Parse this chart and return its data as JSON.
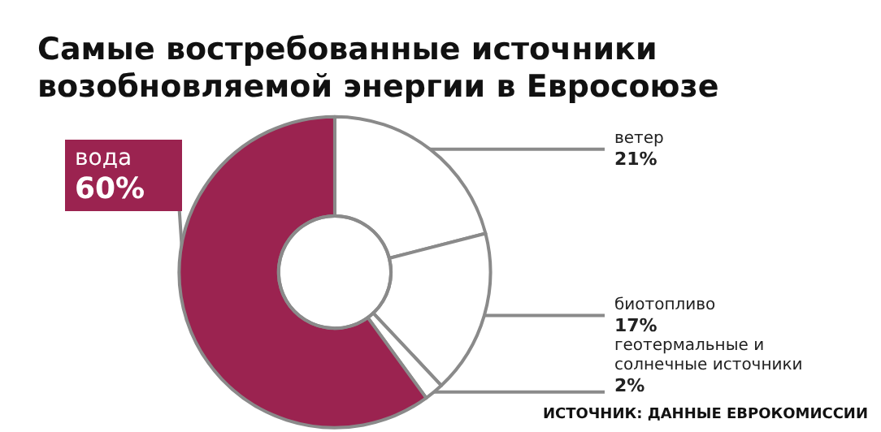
{
  "chart_data": {
    "type": "donut",
    "title": "Самые востребованные источники\nвозобновляемой энергии в Евросоюзе",
    "categories": [
      "ветер",
      "биотопливо",
      "геотермальные и солнечные источники",
      "вода"
    ],
    "values": [
      21,
      17,
      2,
      60
    ],
    "value_labels": [
      "21%",
      "17%",
      "2%",
      "60%"
    ],
    "colors": [
      "#ffffff",
      "#ffffff",
      "#ffffff",
      "#9b2350"
    ],
    "annotations": [
      "ИСТОЧНИК: ДАННЫЕ ЕВРОКОМИССИИ"
    ],
    "legend": false
  }
}
